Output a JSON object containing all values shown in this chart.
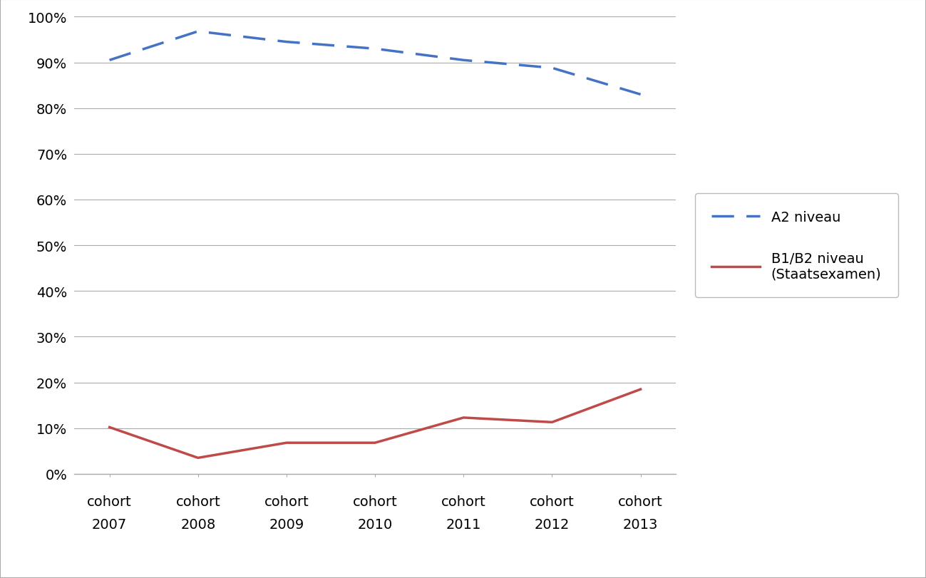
{
  "a2_data": [
    0.905,
    0.968,
    0.945,
    0.93,
    0.905,
    0.888,
    0.83
  ],
  "b1b2_data": [
    0.102,
    0.035,
    0.068,
    0.068,
    0.123,
    0.113,
    0.185
  ],
  "a2_color": "#4472C4",
  "b1b2_color": "#BE4B48",
  "background_color": "#FFFFFF",
  "plot_bg_color": "#FFFFFF",
  "grid_color": "#AAAAAA",
  "border_color": "#AAAAAA",
  "ylim": [
    0,
    1.0
  ],
  "yticks": [
    0,
    0.1,
    0.2,
    0.3,
    0.4,
    0.5,
    0.6,
    0.7,
    0.8,
    0.9,
    1.0
  ],
  "years": [
    "2007",
    "2008",
    "2009",
    "2010",
    "2011",
    "2012",
    "2013"
  ],
  "legend_a2": "A2 niveau",
  "legend_b1b2": "B1/B2 niveau\n(Staatsexamen)",
  "fig_bg_color": "#FFFFFF",
  "tick_fontsize": 14,
  "label_fontsize": 14
}
